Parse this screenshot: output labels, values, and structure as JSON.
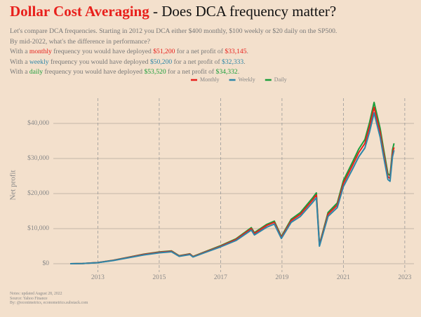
{
  "chart_data": {
    "type": "line",
    "title_parts": [
      {
        "text": "Dollar Cost Averaging",
        "color": "#e8201c",
        "bold": true
      },
      {
        "text": " - Does DCA frequency matter?"
      }
    ],
    "subtitle_lines": [
      [
        {
          "text": "Let's compare DCA frequencies. Starting in 2012 you DCA either $400 monthly, $100 weekly or $20 daily on the SP500."
        }
      ],
      [
        {
          "text": "By mid-2022, what's the difference in performance?"
        }
      ],
      [
        {
          "text": "With a "
        },
        {
          "text": "monthly",
          "color": "#e8201c"
        },
        {
          "text": " frequency you would have deployed "
        },
        {
          "text": "$51,200",
          "color": "#e8201c"
        },
        {
          "text": " for a net profit of "
        },
        {
          "text": "$33,145",
          "color": "#e8201c"
        },
        {
          "text": "."
        }
      ],
      [
        {
          "text": "With a "
        },
        {
          "text": "weekly",
          "color": "#2e86a8"
        },
        {
          "text": " frequency you would have deployed "
        },
        {
          "text": "$50,200",
          "color": "#2e86a8"
        },
        {
          "text": " for a net profit of "
        },
        {
          "text": "$32,333",
          "color": "#2e86a8"
        },
        {
          "text": "."
        }
      ],
      [
        {
          "text": "With a "
        },
        {
          "text": "daily",
          "color": "#1a9e3a"
        },
        {
          "text": " frequency you would have deployed "
        },
        {
          "text": "$53,520",
          "color": "#1a9e3a"
        },
        {
          "text": " for a net profit of "
        },
        {
          "text": "$34,332",
          "color": "#1a9e3a"
        },
        {
          "text": "."
        }
      ]
    ],
    "y_label": "Net profit",
    "notes": [
      "Notes: updated August 28, 2022",
      "Source: Yahoo Finance",
      "By: @econimetrics, econometrics.substack.com"
    ],
    "legend": "top",
    "grid": true,
    "x": [
      2012.1,
      2012.5,
      2013.0,
      2013.5,
      2014.0,
      2014.5,
      2015.0,
      2015.4,
      2015.65,
      2016.0,
      2016.1,
      2016.5,
      2017.0,
      2017.5,
      2018.0,
      2018.1,
      2018.5,
      2018.75,
      2018.98,
      2019.3,
      2019.6,
      2020.0,
      2020.12,
      2020.22,
      2020.5,
      2020.8,
      2021.0,
      2021.3,
      2021.5,
      2021.7,
      2021.85,
      2022.0,
      2022.2,
      2022.3,
      2022.45,
      2022.52,
      2022.6,
      2022.65
    ],
    "series": [
      {
        "name": "Monthly",
        "color": "#e8201c",
        "values": [
          0,
          50,
          320,
          950,
          1800,
          2650,
          3250,
          3550,
          2200,
          2750,
          2000,
          3350,
          5000,
          6900,
          10000,
          8600,
          10900,
          11800,
          7500,
          12300,
          14100,
          18200,
          19600,
          5300,
          14100,
          16700,
          22900,
          28100,
          31700,
          34300,
          39000,
          44600,
          37300,
          32100,
          24800,
          24300,
          31500,
          33145
        ]
      },
      {
        "name": "Weekly",
        "color": "#2e86a8",
        "values": [
          0,
          50,
          300,
          900,
          1700,
          2500,
          3100,
          3400,
          2100,
          2600,
          1900,
          3200,
          4800,
          6600,
          9600,
          8200,
          10400,
          11300,
          7200,
          11800,
          13500,
          17500,
          18800,
          5000,
          13500,
          16000,
          22000,
          27000,
          30500,
          33000,
          37500,
          43000,
          36000,
          31000,
          24000,
          23500,
          30500,
          32333
        ]
      },
      {
        "name": "Daily",
        "color": "#1a9e3a",
        "values": [
          0,
          50,
          330,
          980,
          1860,
          2720,
          3350,
          3650,
          2280,
          2830,
          2060,
          3450,
          5150,
          7100,
          10300,
          8850,
          11200,
          12150,
          7750,
          12700,
          14600,
          18800,
          20200,
          5500,
          14600,
          17300,
          23700,
          29000,
          32700,
          35400,
          40200,
          46000,
          38500,
          33200,
          25700,
          25100,
          32500,
          34332
        ]
      }
    ],
    "xlim": [
      2011.55,
      2023.3
    ],
    "xticks": [
      2013,
      2015,
      2017,
      2019,
      2021,
      2023
    ],
    "ylim": [
      -2400,
      47200
    ],
    "yticks": [
      {
        "value": 0,
        "label": "$0"
      },
      {
        "value": 10000,
        "label": "$10,000"
      },
      {
        "value": 20000,
        "label": "$20,000"
      },
      {
        "value": 30000,
        "label": "$30,000"
      },
      {
        "value": 40000,
        "label": "$40,000"
      }
    ]
  }
}
